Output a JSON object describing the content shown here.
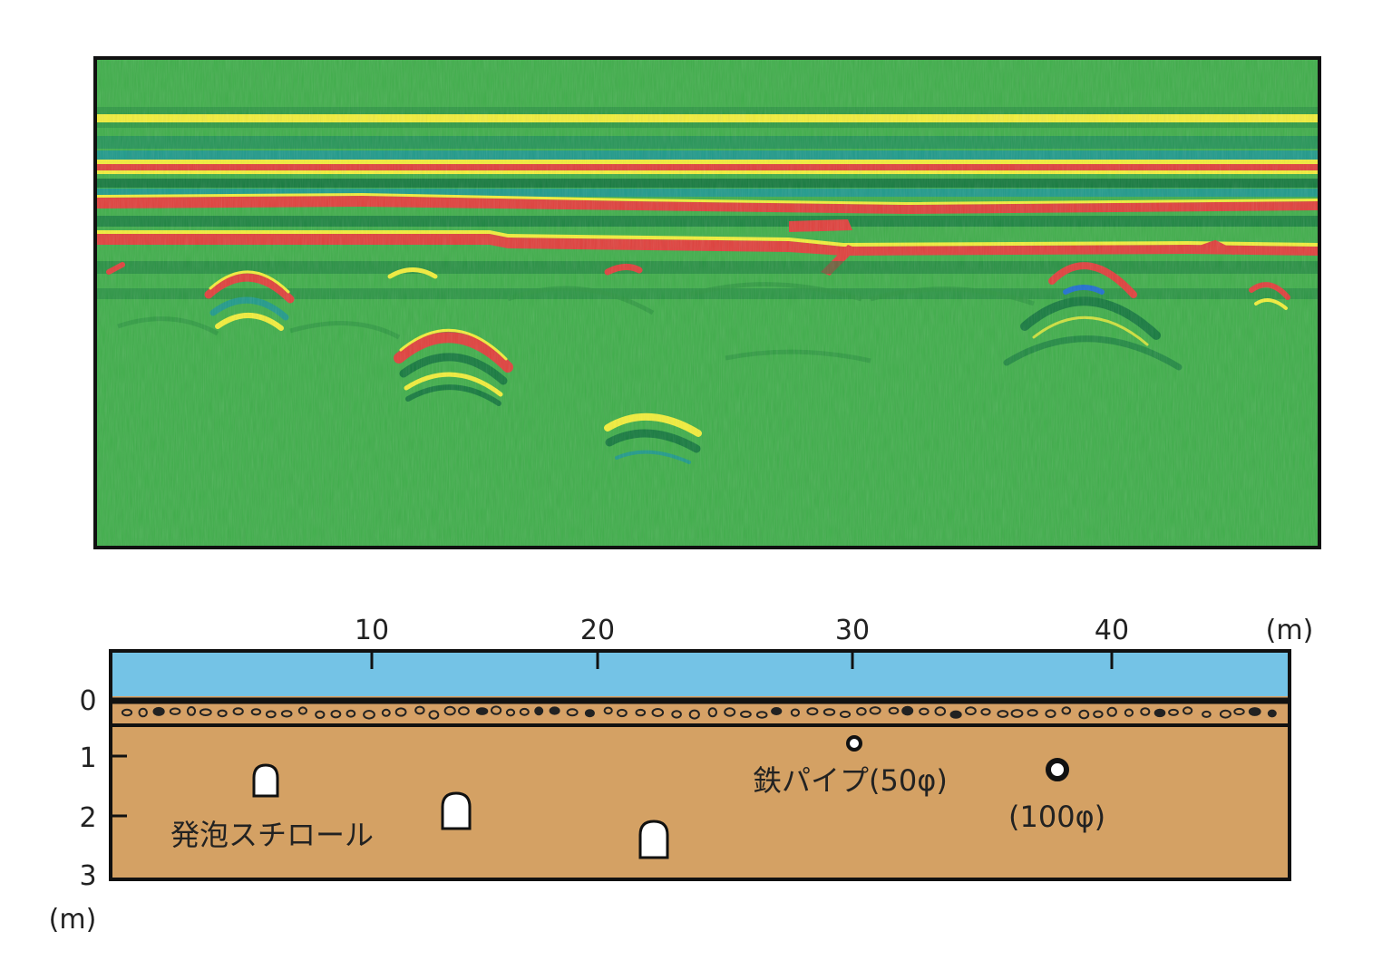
{
  "radargram": {
    "background_color": "#3fae4a",
    "layer_colors": {
      "yellow": "#f2ee3a",
      "red": "#e0403c",
      "teal": "#1f9a8a",
      "dark_green": "#157a3e"
    }
  },
  "section": {
    "x_axis": {
      "ticks": [
        "10",
        "20",
        "30",
        "40"
      ],
      "tick_values": [
        10,
        20,
        30,
        40
      ],
      "unit": "(m)"
    },
    "y_axis": {
      "ticks": [
        "0",
        "1",
        "2",
        "3"
      ],
      "tick_values": [
        0,
        1,
        2,
        3
      ],
      "unit": "(m)"
    },
    "labels": {
      "styrofoam": "発泡スチロール",
      "iron_pipe": "鉄パイプ(50φ)",
      "pipe_100": "(100φ)"
    },
    "colors": {
      "surface": "#74c3e6",
      "gravel": "#d6a166",
      "soil": "#d4a164",
      "line": "#111111",
      "object": "#ffffff"
    }
  }
}
